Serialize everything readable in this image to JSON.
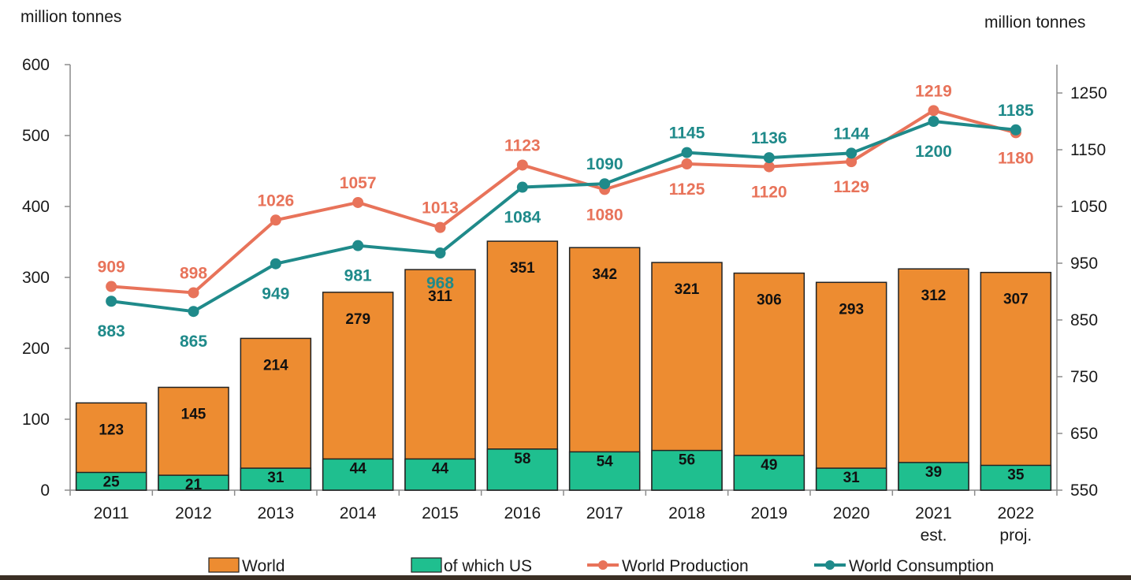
{
  "chart_data": {
    "type": "bar",
    "combo": "stacked-bar-with-lines-on-secondary-axis",
    "left_axis": {
      "label": "million tonnes",
      "ylim": [
        0,
        600
      ],
      "ticks": [
        0,
        100,
        200,
        300,
        400,
        500,
        600
      ]
    },
    "right_axis": {
      "label": "million tonnes",
      "ylim": [
        550,
        1300
      ],
      "ticks": [
        550,
        650,
        750,
        850,
        950,
        1050,
        1150,
        1250
      ]
    },
    "categories": [
      [
        "2011"
      ],
      [
        "2012"
      ],
      [
        "2013"
      ],
      [
        "2014"
      ],
      [
        "2015"
      ],
      [
        "2016"
      ],
      [
        "2017"
      ],
      [
        "2018"
      ],
      [
        "2019"
      ],
      [
        "2020"
      ],
      [
        "2021",
        "est."
      ],
      [
        "2022",
        "proj."
      ]
    ],
    "bar_series": [
      {
        "name": "World",
        "axis": "left",
        "color": "#ED8C31",
        "values": [
          123,
          145,
          214,
          279,
          311,
          351,
          342,
          321,
          306,
          293,
          312,
          307
        ]
      },
      {
        "name": "of which US",
        "axis": "left",
        "color": "#1FBF8F",
        "values": [
          25,
          21,
          31,
          44,
          44,
          58,
          54,
          56,
          49,
          31,
          39,
          35
        ]
      }
    ],
    "line_series": [
      {
        "name": "World Production",
        "axis": "right",
        "color": "#E8735A",
        "values": [
          909,
          898,
          1026,
          1057,
          1013,
          1123,
          1080,
          1125,
          1120,
          1129,
          1219,
          1180
        ]
      },
      {
        "name": "World Consumption",
        "axis": "right",
        "color": "#1F8A8A",
        "values": [
          883,
          865,
          949,
          981,
          968,
          1084,
          1090,
          1145,
          1136,
          1144,
          1200,
          1185
        ]
      }
    ],
    "legend": {
      "position": "bottom",
      "entries": [
        "World",
        "of which US",
        "World Production",
        "World Consumption"
      ]
    },
    "grid": false
  }
}
